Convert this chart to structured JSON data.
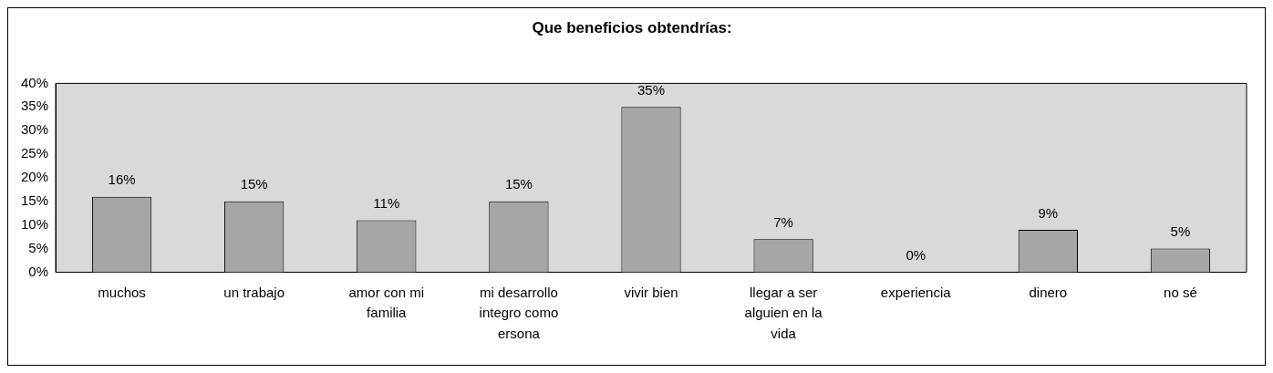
{
  "chart_data": {
    "type": "bar",
    "title": "Que beneficios obtendrías:",
    "categories": [
      "muchos",
      "un trabajo",
      "amor con mi familia",
      "mi desarrollo integro como ersona",
      "vivir bien",
      "llegar a ser alguien en la vida",
      "experiencia",
      "dinero",
      "no sé"
    ],
    "values": [
      16,
      15,
      11,
      15,
      35,
      7,
      0,
      9,
      5
    ],
    "value_labels": [
      "16%",
      "15%",
      "11%",
      "15%",
      "35%",
      "7%",
      "0%",
      "9%",
      "5%"
    ],
    "color": "#a6a6a6",
    "ylim": [
      0,
      40
    ],
    "yticks": [
      {
        "value": 0,
        "label": "0%"
      },
      {
        "value": 5,
        "label": "5%"
      },
      {
        "value": 10,
        "label": "10%"
      },
      {
        "value": 15,
        "label": "15%"
      },
      {
        "value": 20,
        "label": "20%"
      },
      {
        "value": 25,
        "label": "25%"
      },
      {
        "value": 30,
        "label": "30%"
      },
      {
        "value": 35,
        "label": "35%"
      },
      {
        "value": 40,
        "label": "40%"
      }
    ],
    "grid": false,
    "legend": false
  }
}
